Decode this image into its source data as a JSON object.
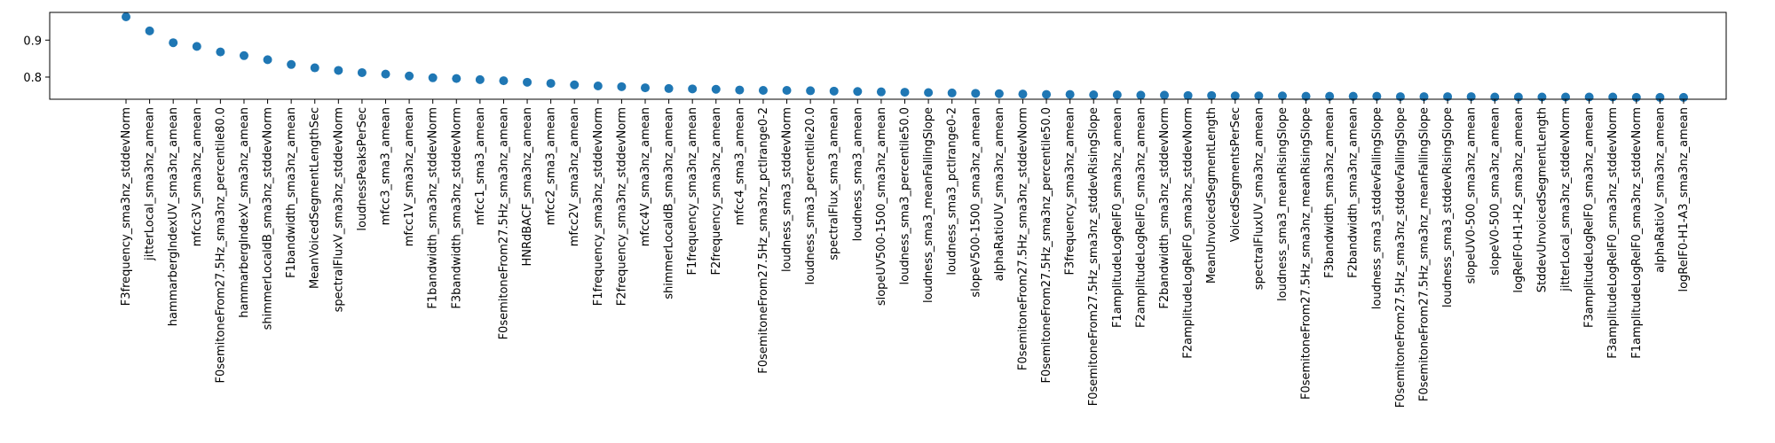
{
  "chart_data": {
    "type": "scatter",
    "title": "",
    "xlabel": "",
    "ylabel": "",
    "ylim": [
      0.74,
      0.975
    ],
    "yticks": [
      0.8,
      0.9
    ],
    "ytick_labels": [
      "0.8",
      "0.9"
    ],
    "grid": false,
    "marker_color": "#1f77b4",
    "categories": [
      "F3frequency_sma3nz_stddevNorm",
      "jitterLocal_sma3nz_amean",
      "hammarbergIndexUV_sma3nz_amean",
      "mfcc3V_sma3nz_amean",
      "F0semitoneFrom27.5Hz_sma3nz_percentile80.0",
      "hammarbergIndexV_sma3nz_amean",
      "shimmerLocaldB_sma3nz_stddevNorm",
      "F1bandwidth_sma3nz_amean",
      "MeanVoicedSegmentLengthSec",
      "spectralFluxV_sma3nz_stddevNorm",
      "loudnessPeaksPerSec",
      "mfcc3_sma3_amean",
      "mfcc1V_sma3nz_amean",
      "F1bandwidth_sma3nz_stddevNorm",
      "F3bandwidth_sma3nz_stddevNorm",
      "mfcc1_sma3_amean",
      "F0semitoneFrom27.5Hz_sma3nz_amean",
      "HNRdBACF_sma3nz_amean",
      "mfcc2_sma3_amean",
      "mfcc2V_sma3nz_amean",
      "F1frequency_sma3nz_stddevNorm",
      "F2frequency_sma3nz_stddevNorm",
      "mfcc4V_sma3nz_amean",
      "shimmerLocaldB_sma3nz_amean",
      "F1frequency_sma3nz_amean",
      "F2frequency_sma3nz_amean",
      "mfcc4_sma3_amean",
      "F0semitoneFrom27.5Hz_sma3nz_pctlrange0-2",
      "loudness_sma3_stddevNorm",
      "loudness_sma3_percentile20.0",
      "spectralFlux_sma3_amean",
      "loudness_sma3_amean",
      "slopeUV500-1500_sma3nz_amean",
      "loudness_sma3_percentile50.0",
      "loudness_sma3_meanFallingSlope",
      "loudness_sma3_pctlrange0-2",
      "slopeV500-1500_sma3nz_amean",
      "alphaRatioUV_sma3nz_amean",
      "F0semitoneFrom27.5Hz_sma3nz_stddevNorm",
      "F0semitoneFrom27.5Hz_sma3nz_percentile50.0",
      "F3frequency_sma3nz_amean",
      "F0semitoneFrom27.5Hz_sma3nz_stddevRisingSlope",
      "F1amplitudeLogRelF0_sma3nz_amean",
      "F2amplitudeLogRelF0_sma3nz_amean",
      "F2bandwidth_sma3nz_stddevNorm",
      "F2amplitudeLogRelF0_sma3nz_stddevNorm",
      "MeanUnvoicedSegmentLength",
      "VoicedSegmentsPerSec",
      "spectralFluxUV_sma3nz_amean",
      "loudness_sma3_meanRisingSlope",
      "F0semitoneFrom27.5Hz_sma3nz_meanRisingSlope",
      "F3bandwidth_sma3nz_amean",
      "F2bandwidth_sma3nz_amean",
      "loudness_sma3_stddevFallingSlope",
      "F0semitoneFrom27.5Hz_sma3nz_stddevFallingSlope",
      "F0semitoneFrom27.5Hz_sma3nz_meanFallingSlope",
      "loudness_sma3_stddevRisingSlope",
      "slopeUV0-500_sma3nz_amean",
      "slopeV0-500_sma3nz_amean",
      "logRelF0-H1-H2_sma3nz_amean",
      "StddevUnvoicedSegmentLength",
      "jitterLocal_sma3nz_stddevNorm",
      "F3amplitudeLogRelF0_sma3nz_amean",
      "F3amplitudeLogRelF0_sma3nz_stddevNorm",
      "F1amplitudeLogRelF0_sma3nz_stddevNorm",
      "alphaRatioV_sma3nz_amean",
      "logRelF0-H1-A3_sma3nz_amean"
    ],
    "values": [
      0.963,
      0.925,
      0.893,
      0.883,
      0.868,
      0.858,
      0.847,
      0.834,
      0.825,
      0.818,
      0.812,
      0.808,
      0.803,
      0.798,
      0.796,
      0.793,
      0.79,
      0.786,
      0.783,
      0.779,
      0.776,
      0.774,
      0.771,
      0.769,
      0.768,
      0.767,
      0.765,
      0.764,
      0.764,
      0.763,
      0.762,
      0.761,
      0.76,
      0.759,
      0.758,
      0.757,
      0.756,
      0.755,
      0.754,
      0.753,
      0.753,
      0.752,
      0.752,
      0.751,
      0.751,
      0.75,
      0.75,
      0.749,
      0.749,
      0.749,
      0.748,
      0.748,
      0.748,
      0.748,
      0.747,
      0.747,
      0.747,
      0.747,
      0.746,
      0.746,
      0.746,
      0.746,
      0.746,
      0.746,
      0.745,
      0.745,
      0.745
    ]
  }
}
